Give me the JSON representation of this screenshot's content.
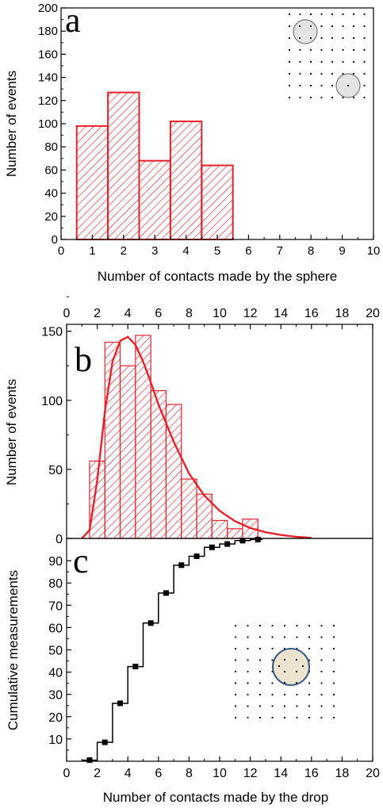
{
  "colors": {
    "red": "#e8222a",
    "black": "#000000",
    "sphere_fill": "#e3e3e3",
    "sphere_stroke": "#777777",
    "drop_fill": "#ede4cf",
    "drop_stroke": "#3a5b8c"
  },
  "chart_data": [
    {
      "panel": "a",
      "type": "bar",
      "style": "hatched histogram",
      "xlabel": "Number of contacts made by the sphere",
      "ylabel": "Number of events",
      "xlim": [
        0,
        10
      ],
      "ylim": [
        0,
        200
      ],
      "x_ticks": [
        "0",
        "1",
        "2",
        "3",
        "4",
        "5",
        "6",
        "7",
        "8",
        "9",
        "10"
      ],
      "y_ticks": [
        "0",
        "20",
        "40",
        "60",
        "80",
        "100",
        "120",
        "140",
        "160",
        "180",
        "200"
      ],
      "categories": [
        1,
        2,
        3,
        4,
        5
      ],
      "values": [
        98,
        127,
        68,
        102,
        64
      ],
      "inset": "sphere-on-lattice",
      "grid": false
    },
    {
      "panel": "b",
      "type": "bar",
      "style": "hatched histogram with fitted curve",
      "ylabel": "Number of events",
      "xlim": [
        0,
        20
      ],
      "ylim": [
        0,
        155
      ],
      "x_ticks": [
        "0",
        "2",
        "4",
        "6",
        "8",
        "10",
        "12",
        "14",
        "16",
        "18",
        "20"
      ],
      "y_ticks": [
        "0",
        "50",
        "100",
        "150"
      ],
      "categories": [
        2,
        3,
        4,
        5,
        6,
        7,
        8,
        9,
        10,
        11,
        12
      ],
      "values": [
        56,
        142,
        125,
        147,
        107,
        97,
        43,
        32,
        13,
        7,
        14
      ],
      "fit_curve": {
        "x": [
          1,
          1.5,
          2,
          2.5,
          3,
          3.5,
          4,
          4.5,
          5,
          5.5,
          6,
          7,
          8,
          9,
          10,
          11,
          12,
          13,
          14,
          15,
          16
        ],
        "y": [
          0,
          6,
          42,
          92,
          128,
          143,
          146,
          140,
          128,
          113,
          97,
          70,
          47,
          31,
          20,
          12.5,
          7.5,
          4.5,
          2.5,
          1.2,
          0.4
        ]
      },
      "grid": false
    },
    {
      "panel": "c",
      "type": "line",
      "style": "cumulative step with square markers",
      "xlabel": "Number of contacts made by the drop",
      "ylabel": "Cumulative  measurements",
      "xlim": [
        0,
        20
      ],
      "ylim": [
        0,
        100
      ],
      "x_ticks": [
        "0",
        "2",
        "4",
        "6",
        "8",
        "10",
        "12",
        "14",
        "16",
        "18",
        "20"
      ],
      "y_ticks": [
        "10",
        "20",
        "30",
        "40",
        "50",
        "60",
        "70",
        "80",
        "90"
      ],
      "x": [
        1,
        2,
        3,
        4,
        5,
        6,
        7,
        8,
        9,
        10,
        11,
        12
      ],
      "y": [
        0.5,
        8.5,
        26,
        42.5,
        62,
        75.5,
        88,
        92,
        96,
        97.5,
        99,
        99.5
      ],
      "inset": "drop-on-lattice",
      "grid": false
    }
  ],
  "labels": {
    "panel_a": "a",
    "panel_b": "b",
    "panel_c": "c"
  }
}
